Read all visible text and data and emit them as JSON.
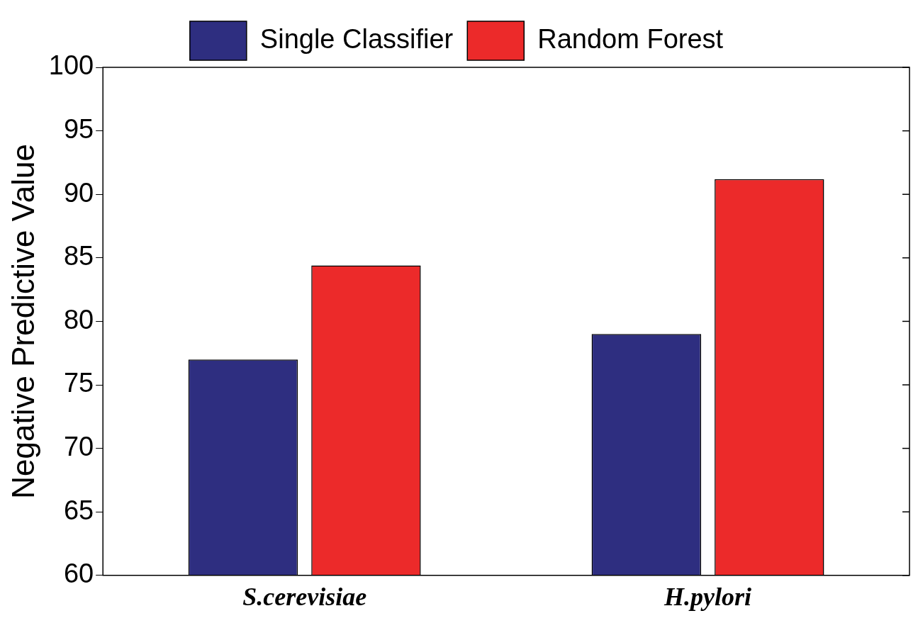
{
  "chart_data": {
    "type": "bar",
    "ylabel": "Negative Predictive Value",
    "categories": [
      "S.cerevisiae",
      "H.pylori"
    ],
    "series": [
      {
        "name": "Single Classifier",
        "color": "#2e2e80",
        "values": [
          77.0,
          79.0
        ]
      },
      {
        "name": "Random Forest",
        "color": "#ec2a2a",
        "values": [
          84.4,
          91.2
        ]
      }
    ],
    "ylim": [
      60,
      100
    ],
    "yticks": [
      60,
      65,
      70,
      75,
      80,
      85,
      90,
      95,
      100
    ],
    "grid": false,
    "legend": "top"
  }
}
